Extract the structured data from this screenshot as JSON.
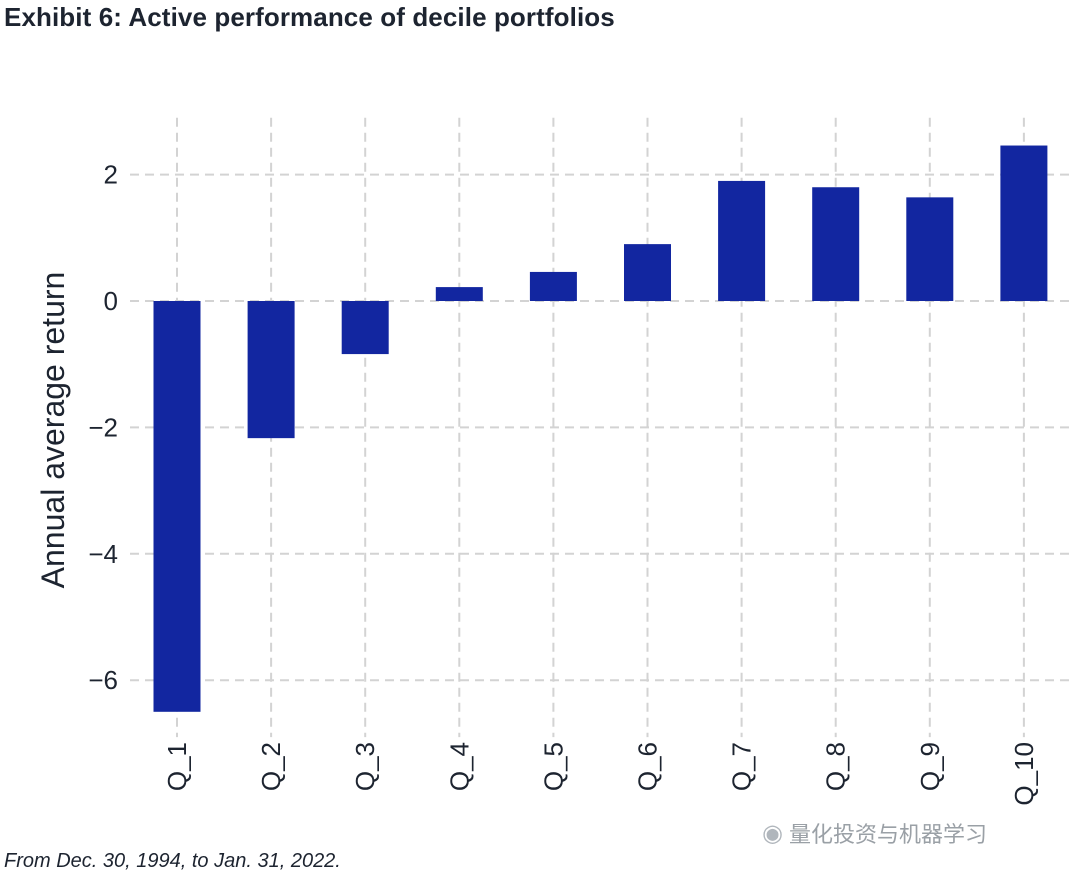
{
  "title": "Exhibit 6: Active performance of decile portfolios",
  "footnote": "From Dec. 30, 1994, to Jan. 31, 2022.",
  "watermark": "量化投资与机器学习",
  "colors": {
    "bar": "#1226a0",
    "grid": "#d3d3d3",
    "text": "#1d2430"
  },
  "chart_data": {
    "type": "bar",
    "categories": [
      "Q_1",
      "Q_2",
      "Q_3",
      "Q_4",
      "Q_5",
      "Q_6",
      "Q_7",
      "Q_8",
      "Q_9",
      "Q_10"
    ],
    "values": [
      -6.5,
      -2.17,
      -0.84,
      0.22,
      0.46,
      0.9,
      1.9,
      1.8,
      1.64,
      2.46
    ],
    "xlabel": "",
    "ylabel": "Annual average return",
    "yticks": [
      2,
      0,
      -2,
      -4,
      -6
    ],
    "ytick_labels": [
      "2",
      "0",
      "−2",
      "−4",
      "−6"
    ],
    "ylim": [
      -6.9,
      2.9
    ],
    "grid": true,
    "grid_style": "dashed"
  }
}
